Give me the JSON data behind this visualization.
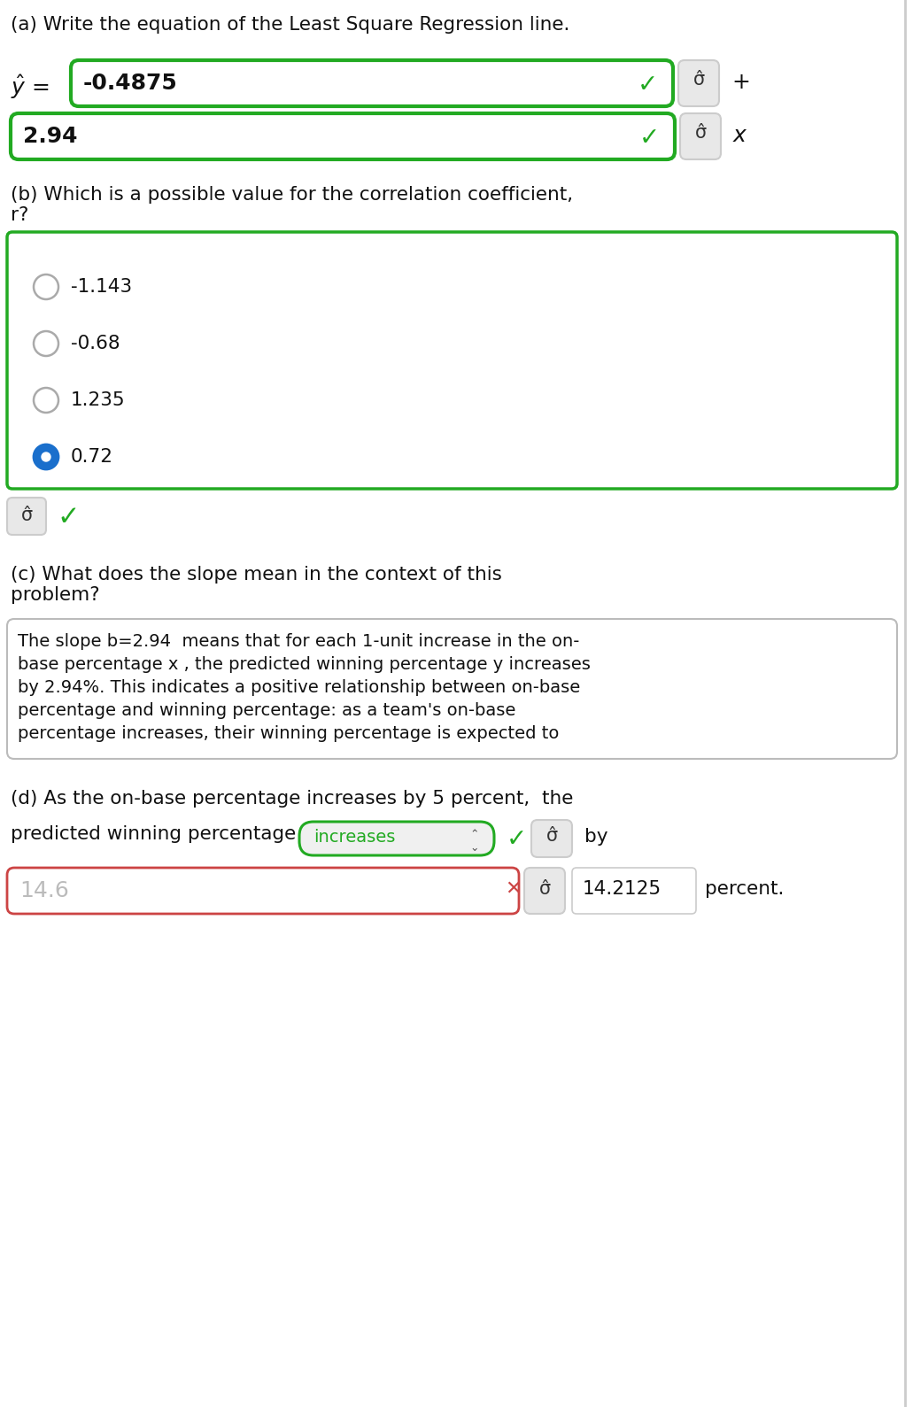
{
  "title_a": "(a) Write the equation of the Least Square Regression line.",
  "intercept_value": "-0.4875",
  "slope_value": "2.94",
  "title_b": "(b) Which is a possible value for the correlation coefficient,\nr?",
  "radio_options": [
    "-1.143",
    "-0.68",
    "1.235",
    "0.72"
  ],
  "selected_option": 3,
  "title_c": "(c) What does the slope mean in the context of this\nproblem?",
  "slope_line1": "The slope b=2.94  means that for each 1-unit increase in the on-",
  "slope_line2": "base percentage x , the predicted winning percentage y increases",
  "slope_line3": "by 2.94%. This indicates a positive relationship between on-base",
  "slope_line4": "percentage and winning percentage: as a team's on-base",
  "slope_line5": "percentage increases, their winning percentage is expected to",
  "title_d1": "(d) As the on-base percentage increases by 5 percent,  the",
  "title_d2": "predicted winning percentage",
  "dropdown_text": "increases",
  "wrong_value": "14.6",
  "correct_value": "14.2125",
  "bg_color": "#ffffff",
  "green_border": "#22aa22",
  "red_border": "#cc4444",
  "gray_bg": "#e8e8e8",
  "green_check": "#22aa22",
  "red_x": "#cc4444",
  "blue_radio": "#1a6fcc",
  "gray_radio": "#aaaaaa",
  "black_text": "#111111",
  "green_dropdown_text": "#22aa22",
  "gray_text": "#bbbbbb",
  "font_size_title": 15.5,
  "font_size_body": 14.5,
  "font_size_input": 18,
  "font_size_small": 13
}
